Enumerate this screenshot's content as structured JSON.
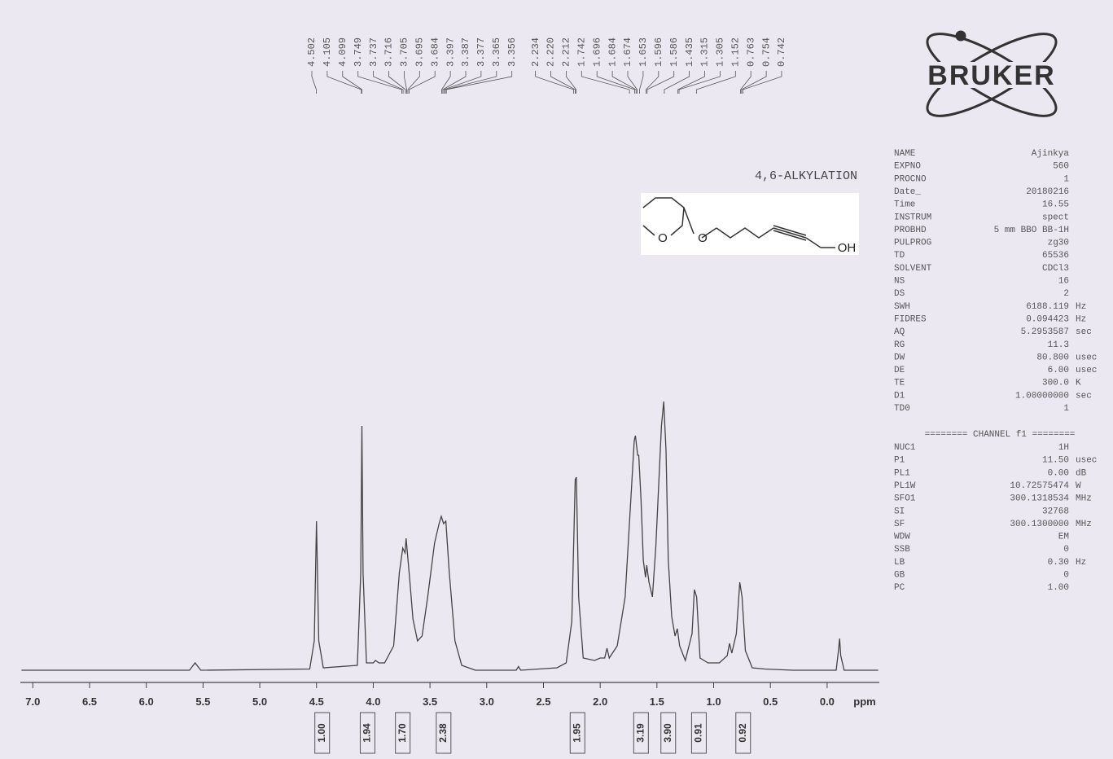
{
  "chart_data": {
    "type": "line",
    "title": "4,6-ALKYLATION",
    "xlabel": "ppm",
    "logo": "BRUKER",
    "structure_labels": [
      "O",
      "O",
      "OH"
    ],
    "color": "#444444",
    "xlim": [
      7.11,
      -0.46
    ],
    "ylim": [
      0,
      115
    ],
    "xticks": [
      {
        "value": 7,
        "label": "7.0"
      },
      6.5,
      {
        "value": 6,
        "label": "6.0"
      },
      5.5,
      {
        "value": 5,
        "label": "5.0"
      },
      4.5,
      {
        "value": 4,
        "label": "4.0"
      },
      3.5,
      {
        "value": 3,
        "label": "3.0"
      },
      2.5,
      {
        "value": 2,
        "label": "2.0"
      },
      1.5,
      {
        "value": 1,
        "label": "1.0"
      },
      0.5,
      {
        "value": 0,
        "label": "0.0"
      }
    ],
    "x": [
      7.1,
      5.62,
      5.57,
      5.52,
      4.56,
      4.52,
      4.5,
      4.48,
      4.44,
      4.14,
      4.11,
      4.1,
      4.09,
      4.06,
      4.0,
      3.98,
      3.95,
      3.9,
      3.82,
      3.77,
      3.74,
      3.72,
      3.71,
      3.68,
      3.65,
      3.61,
      3.57,
      3.52,
      3.46,
      3.42,
      3.4,
      3.38,
      3.36,
      3.33,
      3.28,
      3.22,
      3.1,
      2.74,
      2.72,
      2.7,
      2.38,
      2.3,
      2.25,
      2.22,
      2.21,
      2.19,
      2.15,
      2.05,
      2.0,
      1.96,
      1.94,
      1.92,
      1.85,
      1.78,
      1.73,
      1.7,
      1.69,
      1.67,
      1.66,
      1.64,
      1.62,
      1.6,
      1.59,
      1.57,
      1.54,
      1.51,
      1.48,
      1.46,
      1.44,
      1.42,
      1.4,
      1.37,
      1.34,
      1.32,
      1.3,
      1.25,
      1.19,
      1.17,
      1.15,
      1.12,
      1.05,
      0.95,
      0.88,
      0.86,
      0.84,
      0.8,
      0.77,
      0.75,
      0.72,
      0.66,
      0.55,
      0.3,
      -0.08,
      -0.1,
      -0.11,
      -0.12,
      -0.15,
      -0.45
    ],
    "values": [
      0,
      0,
      3,
      0,
      0.5,
      12,
      61,
      12,
      1,
      2,
      40,
      100,
      40,
      3,
      3,
      4,
      3,
      3,
      10,
      40,
      50,
      48,
      54,
      38,
      21,
      12,
      14,
      30,
      52,
      60,
      63,
      60,
      61,
      40,
      12,
      2,
      0,
      0,
      1.5,
      0,
      1,
      3,
      20,
      78,
      79,
      30,
      5,
      4,
      5,
      5,
      9,
      5,
      10,
      30,
      70,
      94,
      96,
      88,
      88,
      70,
      45,
      38,
      43,
      36,
      30,
      50,
      80,
      100,
      110,
      90,
      45,
      22,
      14,
      17,
      10,
      4,
      15,
      33,
      30,
      5,
      3,
      3,
      6,
      11,
      7,
      15,
      36,
      30,
      8,
      1,
      0.5,
      0,
      0,
      8,
      13,
      6,
      0,
      0
    ],
    "peak_labels": [
      4.502,
      4.105,
      4.099,
      3.749,
      3.737,
      3.716,
      3.705,
      3.695,
      3.684,
      3.397,
      3.387,
      3.377,
      3.365,
      3.356,
      2.234,
      2.22,
      2.212,
      1.742,
      1.696,
      1.684,
      1.674,
      1.653,
      1.596,
      1.586,
      1.435,
      1.315,
      1.305,
      1.152,
      0.763,
      0.754,
      0.742
    ],
    "peak_label_text": [
      "4.502",
      "4.105",
      "4.099",
      "3.749",
      "3.737",
      "3.716",
      "3.705",
      "3.695",
      "3.684",
      "3.397",
      "3.387",
      "3.377",
      "3.365",
      "3.356",
      "2.234",
      "2.220",
      "2.212",
      "1.742",
      "1.696",
      "1.684",
      "1.674",
      "1.653",
      "1.596",
      "1.586",
      "1.435",
      "1.315",
      "1.305",
      "1.152",
      "0.763",
      "0.754",
      "0.742"
    ],
    "integral_ppm": [
      4.45,
      4.05,
      3.74,
      3.38,
      2.2,
      1.64,
      1.4,
      1.13,
      0.74
    ],
    "integrals": [
      1.0,
      1.94,
      1.7,
      2.38,
      1.95,
      3.19,
      3.9,
      0.91,
      0.92
    ],
    "integral_labels": [
      "1.00",
      "1.94",
      "1.70",
      "2.38",
      "1.95",
      "3.19",
      "3.90",
      "0.91",
      "0.92"
    ],
    "parameters": [
      [
        "NAME",
        "Ajinkya",
        ""
      ],
      [
        "EXPNO",
        "560",
        ""
      ],
      [
        "PROCNO",
        "1",
        ""
      ],
      [
        "Date_",
        "20180216",
        ""
      ],
      [
        "Time",
        "16.55",
        ""
      ],
      [
        "INSTRUM",
        "spect",
        ""
      ],
      [
        "PROBHD",
        "5 mm BBO BB-1H",
        ""
      ],
      [
        "PULPROG",
        "zg30",
        ""
      ],
      [
        "TD",
        "65536",
        ""
      ],
      [
        "SOLVENT",
        "CDCl3",
        ""
      ],
      [
        "NS",
        "16",
        ""
      ],
      [
        "DS",
        "2",
        ""
      ],
      [
        "SWH",
        "6188.119",
        "Hz"
      ],
      [
        "FIDRES",
        "0.094423",
        "Hz"
      ],
      [
        "AQ",
        "5.2953587",
        "sec"
      ],
      [
        "RG",
        "11.3",
        ""
      ],
      [
        "DW",
        "80.800",
        "usec"
      ],
      [
        "DE",
        "6.00",
        "usec"
      ],
      [
        "TE",
        "300.0",
        "K"
      ],
      [
        "D1",
        "1.00000000",
        "sec"
      ],
      [
        "TD0",
        "1",
        ""
      ]
    ],
    "channel_heading": "======== CHANNEL f1 ========",
    "channel_parameters": [
      [
        "NUC1",
        "1H",
        ""
      ],
      [
        "P1",
        "11.50",
        "usec"
      ],
      [
        "PL1",
        "0.00",
        "dB"
      ],
      [
        "PL1W",
        "10.72575474",
        "W"
      ],
      [
        "SFO1",
        "300.1318534",
        "MHz"
      ],
      [
        "SI",
        "32768",
        ""
      ],
      [
        "SF",
        "300.1300000",
        "MHz"
      ],
      [
        "WDW",
        "EM",
        ""
      ],
      [
        "SSB",
        "0",
        ""
      ],
      [
        "LB",
        "0.30",
        "Hz"
      ],
      [
        "GB",
        "0",
        ""
      ],
      [
        "PC",
        "1.00",
        ""
      ]
    ]
  }
}
